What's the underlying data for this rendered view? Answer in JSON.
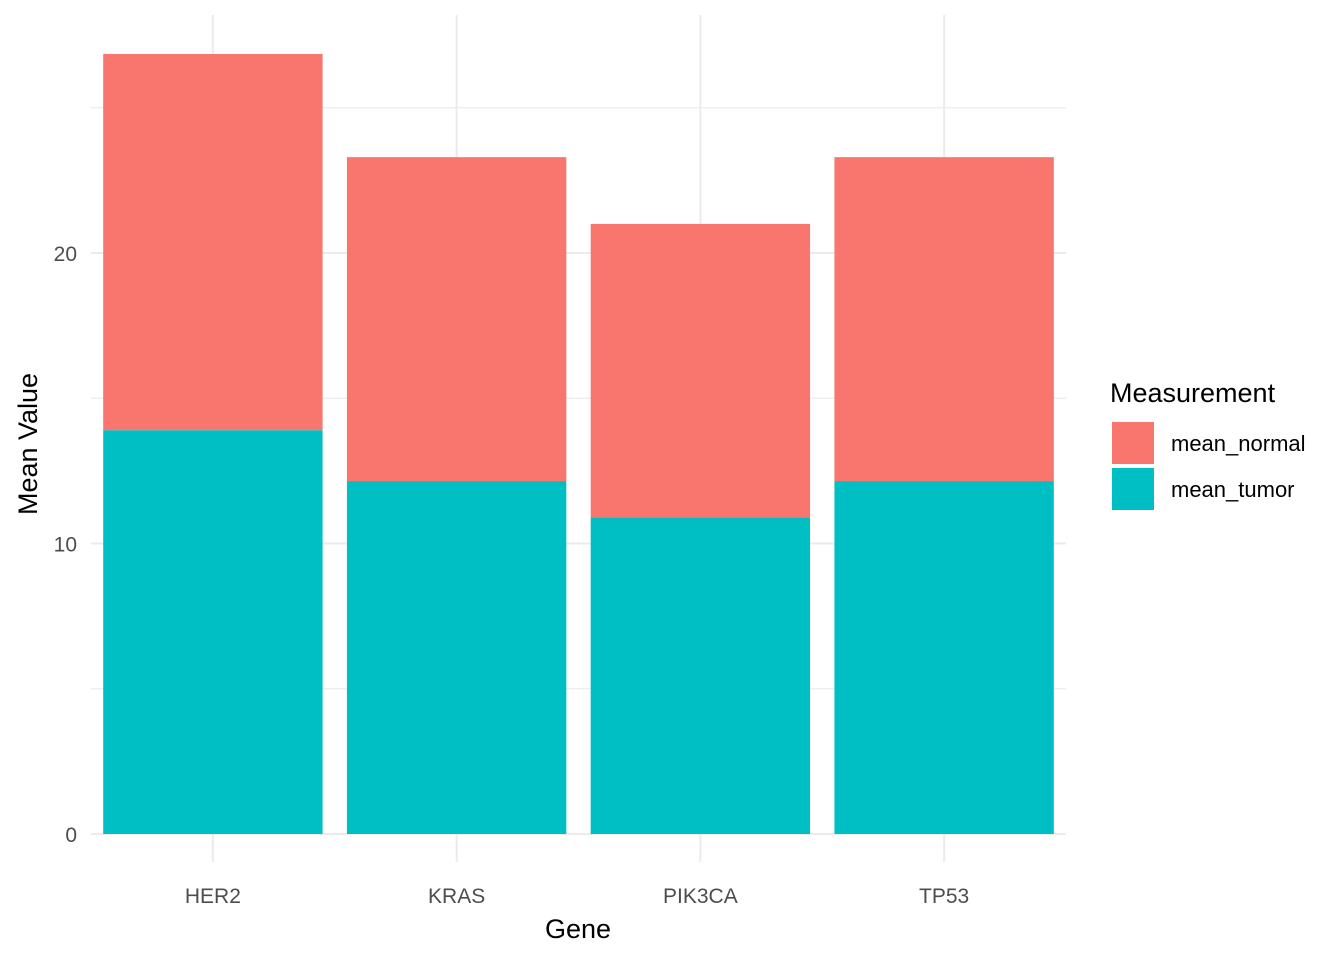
{
  "chart_data": {
    "type": "bar",
    "stacked": true,
    "title": "",
    "xlabel": "Gene",
    "ylabel": "Mean Value",
    "categories": [
      "HER2",
      "KRAS",
      "PIK3CA",
      "TP53"
    ],
    "series": [
      {
        "name": "mean_tumor",
        "color": "#00BFC4",
        "values": [
          13.9,
          12.15,
          10.9,
          12.15
        ]
      },
      {
        "name": "mean_normal",
        "color": "#F8766D",
        "values": [
          12.95,
          11.15,
          10.1,
          11.15
        ]
      }
    ],
    "yticks": [
      0,
      10,
      20
    ],
    "ytick_labels": [
      "0",
      "10",
      "20"
    ],
    "ylim": [
      -1.35,
      28.2
    ],
    "grid": true,
    "legend": {
      "title": "Measurement",
      "position": "right",
      "entries": [
        {
          "label": "mean_normal",
          "color": "#F8766D"
        },
        {
          "label": "mean_tumor",
          "color": "#00BFC4"
        }
      ]
    }
  }
}
